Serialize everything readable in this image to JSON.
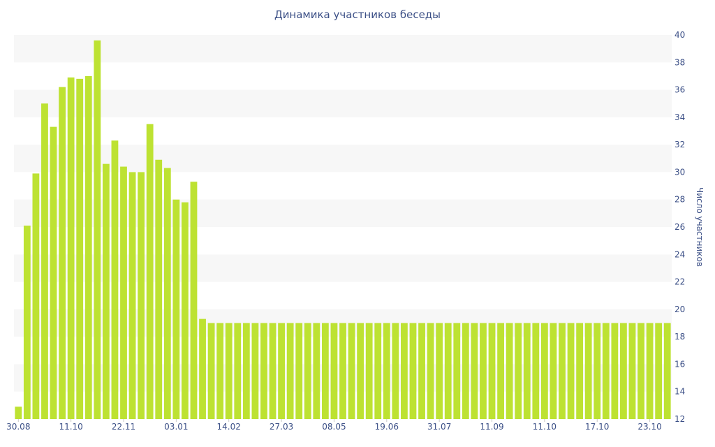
{
  "chart_data": {
    "type": "bar",
    "title": "Динамика участников беседы",
    "xlabel": "",
    "ylabel": "Число участников",
    "y_axis_side": "right",
    "ylim": [
      12,
      40
    ],
    "yticks": [
      12,
      14,
      16,
      18,
      20,
      22,
      24,
      26,
      28,
      30,
      32,
      34,
      36,
      38,
      40
    ],
    "grid": "alternating-horizontal-bands",
    "legend": "none",
    "bar_color": "#bde232",
    "band_color": "#f7f7f7",
    "text_color": "#3b4f86",
    "x_tick_labels": [
      "30.08",
      "11.10",
      "22.11",
      "03.01",
      "14.02",
      "27.03",
      "08.05",
      "19.06",
      "31.07",
      "11.09",
      "11.10",
      "17.10",
      "23.10"
    ],
    "x_tick_positions": [
      0,
      6,
      12,
      18,
      24,
      30,
      36,
      42,
      48,
      54,
      60,
      66,
      72
    ],
    "values": [
      12.9,
      26.1,
      29.9,
      35.0,
      33.3,
      36.2,
      36.9,
      36.8,
      37.0,
      39.6,
      30.6,
      32.3,
      30.4,
      30.0,
      30.0,
      33.5,
      30.9,
      30.3,
      28.0,
      27.8,
      29.3,
      19.3,
      19.0,
      19.0,
      19.0,
      19.0,
      19.0,
      19.0,
      19.0,
      19.0,
      19.0,
      19.0,
      19.0,
      19.0,
      19.0,
      19.0,
      19.0,
      19.0,
      19.0,
      19.0,
      19.0,
      19.0,
      19.0,
      19.0,
      19.0,
      19.0,
      19.0,
      19.0,
      19.0,
      19.0,
      19.0,
      19.0,
      19.0,
      19.0,
      19.0,
      19.0,
      19.0,
      19.0,
      19.0,
      19.0,
      19.0,
      19.0,
      19.0,
      19.0,
      19.0,
      19.0,
      19.0,
      19.0,
      19.0,
      19.0,
      19.0,
      19.0,
      19.0,
      19.0,
      19.0
    ]
  }
}
